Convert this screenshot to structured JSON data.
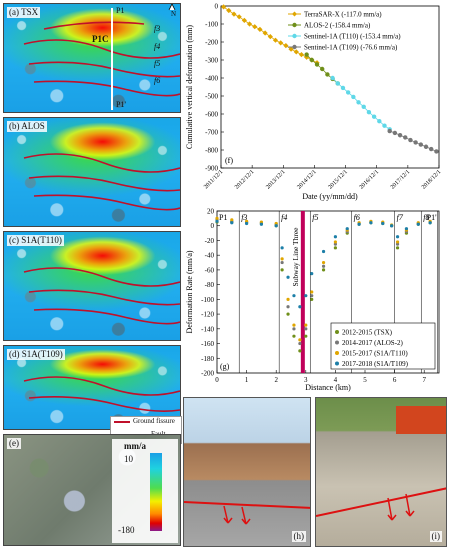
{
  "panels": {
    "a": {
      "label": "(a) TSX"
    },
    "b": {
      "label": "(b) ALOS"
    },
    "c": {
      "label": "(c) S1A(T110)"
    },
    "d": {
      "label": "(d) S1A(T109)"
    },
    "e": {
      "label": "(e)"
    }
  },
  "map_annotations": {
    "north": "N",
    "p1_top": "P1",
    "p1_bottom": "P1'",
    "p1c": "P1C",
    "f5": "f5",
    "f6": "f6",
    "f4": "f4",
    "f7": "f7",
    "f8": "f8",
    "f3": "f3"
  },
  "legend_map": {
    "ground_fissure": "Ground fissure",
    "fault": "Fault"
  },
  "colorbar": {
    "unit": "mm/a",
    "max": "10",
    "min": "-180"
  },
  "photos": {
    "h": "(h)",
    "i": "(i)"
  },
  "colors": {
    "tsx": "#e0a600",
    "alos": "#6f8f1a",
    "s1a_t110": "#5fd8e8",
    "s1a_t109": "#777777",
    "subway": "#c0005a"
  },
  "chart_data": [
    {
      "type": "scatter",
      "panel_label": "(f)",
      "ylabel": "Cumulative vertical deformation (mm)",
      "xlabel": "Date (yy/mm/dd)",
      "ylim": [
        -900,
        0
      ],
      "y_ticks": [
        0,
        -100,
        -200,
        -300,
        -400,
        -500,
        -600,
        -700,
        -800,
        -900
      ],
      "x_ticks": [
        "2011/12/1",
        "2012/12/1",
        "2013/12/1",
        "2014/12/1",
        "2015/12/1",
        "2016/12/1",
        "2017/12/1",
        "2018/12/1"
      ],
      "xlim": [
        "2011/12/1",
        "2018/12/1"
      ],
      "legend_position": "top-right",
      "series": [
        {
          "name": "TerraSAR-X (-117.0 mm/a)",
          "color": "#e0a600",
          "marker": "diamond",
          "points": [
            [
              "2012/1/1",
              -5
            ],
            [
              "2012/3/1",
              -25
            ],
            [
              "2012/5/1",
              -45
            ],
            [
              "2012/7/1",
              -60
            ],
            [
              "2012/9/1",
              -80
            ],
            [
              "2012/11/1",
              -100
            ],
            [
              "2013/1/1",
              -115
            ],
            [
              "2013/3/1",
              -130
            ],
            [
              "2013/5/1",
              -150
            ],
            [
              "2013/7/1",
              -170
            ],
            [
              "2013/9/1",
              -190
            ],
            [
              "2013/11/1",
              -205
            ],
            [
              "2014/1/1",
              -220
            ],
            [
              "2014/3/1",
              -240
            ],
            [
              "2014/5/1",
              -255
            ],
            [
              "2014/7/1",
              -270
            ],
            [
              "2014/9/1",
              -285
            ],
            [
              "2014/11/1",
              -300
            ],
            [
              "2015/1/1",
              -315
            ]
          ]
        },
        {
          "name": "ALOS-2 (-158.4 mm/a)",
          "color": "#6f8f1a",
          "marker": "circle",
          "points": [
            [
              "2014/9/1",
              -270
            ],
            [
              "2014/11/1",
              -300
            ],
            [
              "2015/1/1",
              -325
            ],
            [
              "2015/3/1",
              -350
            ],
            [
              "2015/5/1",
              -380
            ],
            [
              "2015/7/1",
              -405
            ],
            [
              "2015/9/1",
              -430
            ]
          ]
        },
        {
          "name": "Sentinel-1A (T110) (-153.4 mm/a)",
          "color": "#5fd8e8",
          "marker": "circle",
          "points": [
            [
              "2015/7/1",
              -400
            ],
            [
              "2015/9/1",
              -430
            ],
            [
              "2015/11/1",
              -455
            ],
            [
              "2016/1/1",
              -480
            ],
            [
              "2016/3/1",
              -505
            ],
            [
              "2016/5/1",
              -535
            ],
            [
              "2016/7/1",
              -560
            ],
            [
              "2016/9/1",
              -590
            ],
            [
              "2016/11/1",
              -615
            ],
            [
              "2017/1/1",
              -640
            ],
            [
              "2017/3/1",
              -665
            ],
            [
              "2017/5/1",
              -685
            ]
          ]
        },
        {
          "name": "Sentinel-1A (T109) (-76.6 mm/a)",
          "color": "#777777",
          "marker": "circle",
          "points": [
            [
              "2017/5/1",
              -695
            ],
            [
              "2017/7/1",
              -705
            ],
            [
              "2017/9/1",
              -718
            ],
            [
              "2017/11/1",
              -730
            ],
            [
              "2018/1/1",
              -745
            ],
            [
              "2018/3/1",
              -758
            ],
            [
              "2018/5/1",
              -770
            ],
            [
              "2018/7/1",
              -782
            ],
            [
              "2018/9/1",
              -795
            ],
            [
              "2018/11/1",
              -808
            ]
          ]
        }
      ]
    },
    {
      "type": "scatter",
      "panel_label": "(g)",
      "ylabel": "Deformation Rate (mm/a)",
      "xlabel": "Distance (km)",
      "xlim": [
        0,
        7.5
      ],
      "ylim": [
        -200,
        20
      ],
      "x_ticks": [
        0,
        1,
        2,
        3,
        4,
        5,
        6,
        7
      ],
      "y_ticks": [
        20,
        0,
        -20,
        -40,
        -60,
        -80,
        -100,
        -120,
        -140,
        -160,
        -180,
        -200
      ],
      "subway_label": "Subway Line Three",
      "subway_x": 2.9,
      "fault_lines": [
        {
          "label": "P1",
          "x": 0.0
        },
        {
          "label": "f3",
          "x": 0.75
        },
        {
          "label": "f4",
          "x": 2.1
        },
        {
          "label": "f5",
          "x": 3.15
        },
        {
          "label": "f6",
          "x": 4.55
        },
        {
          "label": "f7",
          "x": 6.0
        },
        {
          "label": "f8",
          "x": 6.9
        },
        {
          "label": "P1'",
          "x": 7.45
        }
      ],
      "legend_position": "bottom-right",
      "series": [
        {
          "name": "2012-2015 (TSX)",
          "color": "#6f8f1a",
          "points": [
            [
              0.0,
              5
            ],
            [
              0.5,
              5
            ],
            [
              1.0,
              4
            ],
            [
              1.5,
              3
            ],
            [
              2.0,
              0
            ],
            [
              2.2,
              -60
            ],
            [
              2.4,
              -120
            ],
            [
              2.6,
              -150
            ],
            [
              2.8,
              -170
            ],
            [
              3.0,
              -150
            ],
            [
              3.2,
              -100
            ],
            [
              3.6,
              -60
            ],
            [
              4.0,
              -30
            ],
            [
              4.4,
              -10
            ],
            [
              4.8,
              2
            ],
            [
              5.2,
              4
            ],
            [
              5.6,
              3
            ],
            [
              5.9,
              0
            ],
            [
              6.1,
              -30
            ],
            [
              6.4,
              -10
            ],
            [
              6.8,
              2
            ],
            [
              7.2,
              4
            ]
          ]
        },
        {
          "name": "2014-2017 (ALOS-2)",
          "color": "#777777",
          "points": [
            [
              0.0,
              8
            ],
            [
              0.5,
              6
            ],
            [
              1.0,
              5
            ],
            [
              1.5,
              4
            ],
            [
              2.0,
              2
            ],
            [
              2.2,
              -50
            ],
            [
              2.4,
              -110
            ],
            [
              2.6,
              -140
            ],
            [
              2.8,
              -160
            ],
            [
              3.0,
              -140
            ],
            [
              3.2,
              -95
            ],
            [
              3.6,
              -55
            ],
            [
              4.0,
              -25
            ],
            [
              4.4,
              -8
            ],
            [
              4.8,
              3
            ],
            [
              5.2,
              5
            ],
            [
              5.6,
              4
            ],
            [
              5.9,
              0
            ],
            [
              6.1,
              -25
            ],
            [
              6.4,
              -8
            ],
            [
              6.8,
              3
            ],
            [
              7.2,
              5
            ]
          ]
        },
        {
          "name": "2015-2017 (S1A/T110)",
          "color": "#e0a600",
          "points": [
            [
              0.0,
              10
            ],
            [
              0.5,
              8
            ],
            [
              1.0,
              6
            ],
            [
              1.5,
              5
            ],
            [
              2.0,
              3
            ],
            [
              2.2,
              -45
            ],
            [
              2.4,
              -100
            ],
            [
              2.6,
              -135
            ],
            [
              2.8,
              -155
            ],
            [
              3.0,
              -135
            ],
            [
              3.2,
              -90
            ],
            [
              3.6,
              -50
            ],
            [
              4.0,
              -22
            ],
            [
              4.4,
              -6
            ],
            [
              4.8,
              4
            ],
            [
              5.2,
              6
            ],
            [
              5.6,
              5
            ],
            [
              5.9,
              1
            ],
            [
              6.1,
              -22
            ],
            [
              6.4,
              -6
            ],
            [
              6.8,
              4
            ],
            [
              7.2,
              6
            ]
          ]
        },
        {
          "name": "2017-2018 (S1A/T109)",
          "color": "#1d7fa8",
          "points": [
            [
              0.0,
              6
            ],
            [
              0.5,
              4
            ],
            [
              1.0,
              3
            ],
            [
              1.5,
              2
            ],
            [
              2.0,
              0
            ],
            [
              2.2,
              -30
            ],
            [
              2.4,
              -70
            ],
            [
              2.6,
              -95
            ],
            [
              2.8,
              -110
            ],
            [
              3.0,
              -95
            ],
            [
              3.2,
              -65
            ],
            [
              3.6,
              -35
            ],
            [
              4.0,
              -15
            ],
            [
              4.4,
              -4
            ],
            [
              4.8,
              2
            ],
            [
              5.2,
              4
            ],
            [
              5.6,
              3
            ],
            [
              5.9,
              0
            ],
            [
              6.1,
              -15
            ],
            [
              6.4,
              -4
            ],
            [
              6.8,
              2
            ],
            [
              7.2,
              4
            ]
          ]
        }
      ]
    }
  ]
}
